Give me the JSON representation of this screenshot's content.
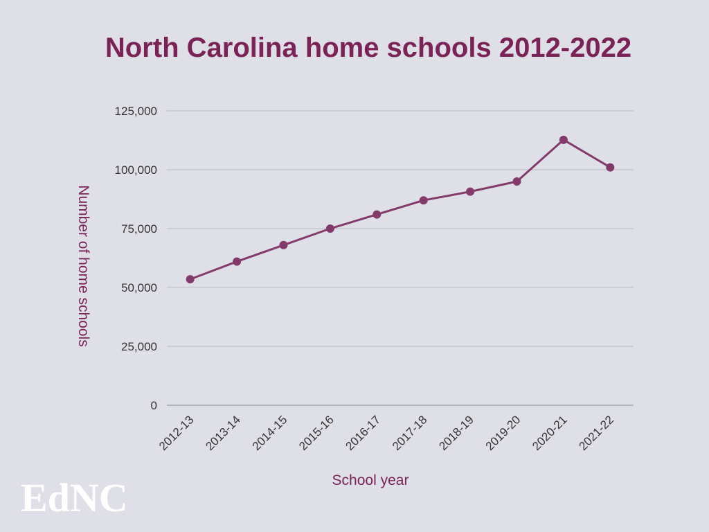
{
  "chart_data": {
    "type": "line",
    "title": "North Carolina home schools 2012-2022",
    "xlabel": "School year",
    "ylabel": "Number of home schools",
    "categories": [
      "2012-13",
      "2013-14",
      "2014-15",
      "2015-16",
      "2016-17",
      "2017-18",
      "2018-19",
      "2019-20",
      "2020-21",
      "2021-22"
    ],
    "series": [
      {
        "values": [
          53500,
          61000,
          68000,
          75000,
          81000,
          87000,
          90700,
          95000,
          112700,
          101000
        ]
      }
    ],
    "yticks": [
      "0",
      "25,000",
      "50,000",
      "75,000",
      "100,000",
      "125,000"
    ],
    "ytick_values": [
      0,
      25000,
      50000,
      75000,
      100000,
      125000
    ],
    "ylim": [
      0,
      125000
    ],
    "grid": true,
    "legend": "none"
  },
  "colors": {
    "accent": "#7b2257",
    "line": "#833a6b",
    "grid": "#b9bac3",
    "tick_text": "#333333",
    "background": "#dfe0e7",
    "logo": "#ffffff"
  },
  "logo": {
    "text": "EdNC"
  }
}
